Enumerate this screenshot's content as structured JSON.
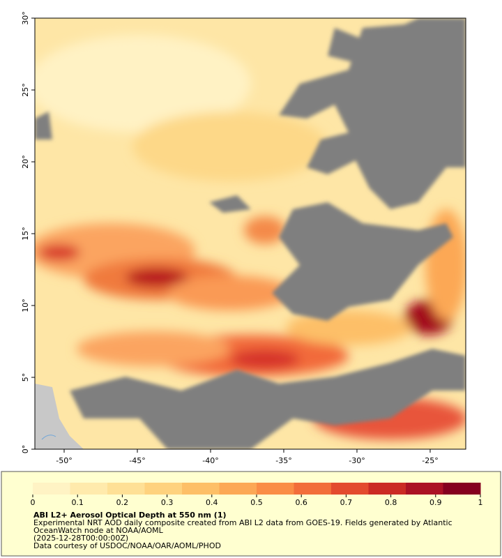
{
  "map": {
    "lonlim": [
      -52,
      -22.57
    ],
    "latlim": [
      0,
      30
    ],
    "lon_ticks": [
      {
        "value": -50,
        "label": "-50°"
      },
      {
        "value": -45,
        "label": "-45°"
      },
      {
        "value": -40,
        "label": "-40°"
      },
      {
        "value": -35,
        "label": "-35°"
      },
      {
        "value": -30,
        "label": "-30°"
      },
      {
        "value": -25,
        "label": "-25°"
      }
    ],
    "lat_ticks": [
      {
        "value": 0,
        "label": "0°"
      },
      {
        "value": 5,
        "label": "5°"
      },
      {
        "value": 10,
        "label": "10°"
      },
      {
        "value": 15,
        "label": "15°"
      },
      {
        "value": 20,
        "label": "20°"
      },
      {
        "value": 25,
        "label": "25°"
      },
      {
        "value": 30,
        "label": "30°"
      }
    ]
  },
  "colorbar": {
    "range": [
      0,
      1
    ],
    "ticks": [
      0,
      0.1,
      0.2,
      0.3,
      0.4,
      0.5,
      0.6,
      0.7,
      0.8,
      0.9,
      1
    ],
    "colors": [
      "#fff3c4",
      "#ffeaac",
      "#fee096",
      "#fed27e",
      "#fdbf67",
      "#fca855",
      "#fa8d46",
      "#f26d3a",
      "#e34a2e",
      "#cb2a24",
      "#ab1124",
      "#85001f"
    ]
  },
  "legend": {
    "title": "ABI L2+ Aerosol Optical Depth at 550 nm (1)",
    "lines": [
      "Experimental NRT AOD daily composite created from ABI L2 data from GOES-19. Fields generated by Atlantic",
      "OceanWatch node at NOAA/AOML",
      "(2025-12-28T00:00:00Z)",
      "Data courtesy of USDOC/NOAA/OAR/AOML/PHOD"
    ]
  }
}
